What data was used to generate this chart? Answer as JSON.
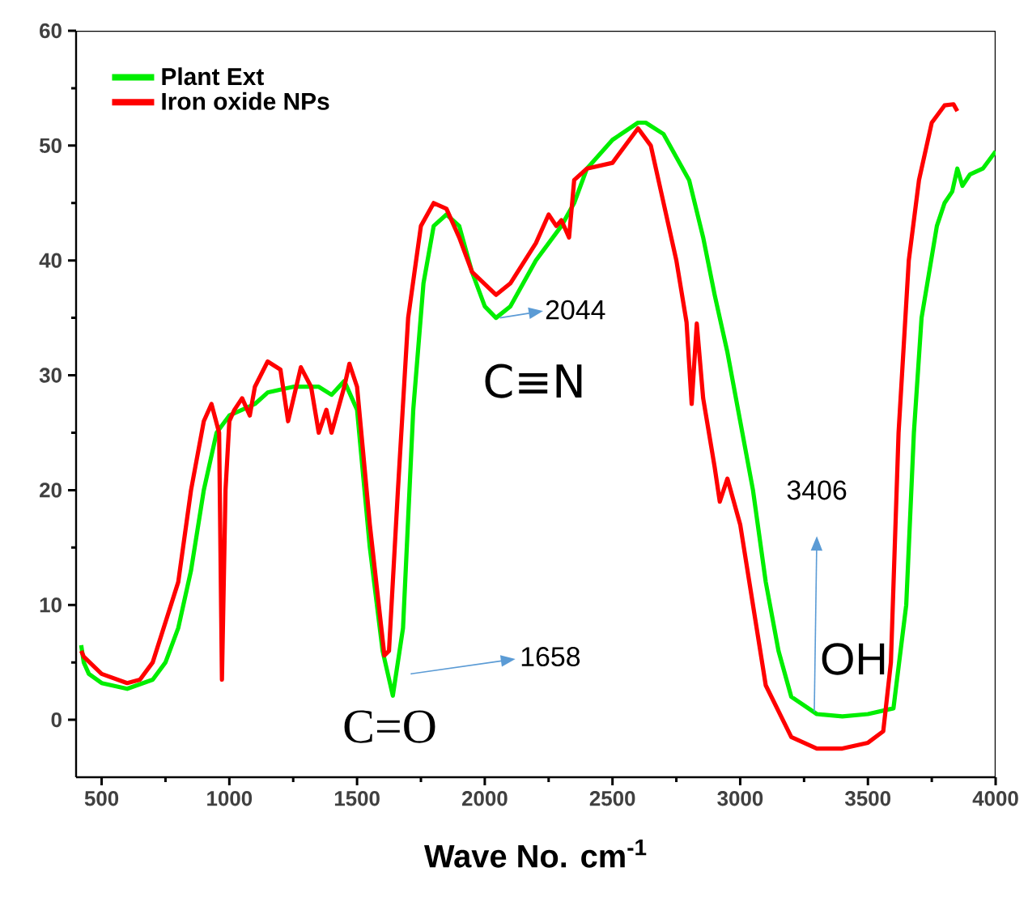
{
  "chart_data": {
    "type": "line",
    "xlabel": "**Wave No. cm$^{-1}$**",
    "xlim": [
      400,
      4000
    ],
    "ylim": [
      -5,
      60
    ],
    "xticks": [
      500,
      1000,
      1500,
      2000,
      2500,
      3000,
      3500,
      4000
    ],
    "yticks": [
      0,
      10,
      20,
      30,
      40,
      50,
      60
    ],
    "grid": false,
    "legend": "top left",
    "series": [
      {
        "name": "Plant Ext",
        "color": "#00ee00",
        "x": [
          420,
          430,
          450,
          500,
          600,
          700,
          750,
          800,
          850,
          900,
          950,
          1000,
          1050,
          1100,
          1150,
          1250,
          1350,
          1400,
          1450,
          1500,
          1550,
          1600,
          1640,
          1680,
          1720,
          1760,
          1800,
          1850,
          1900,
          1950,
          2000,
          2044,
          2100,
          2200,
          2300,
          2350,
          2400,
          2500,
          2600,
          2630,
          2700,
          2800,
          2855,
          2900,
          2950,
          3000,
          3050,
          3100,
          3150,
          3200,
          3300,
          3400,
          3500,
          3600,
          3650,
          3680,
          3710,
          3770,
          3800,
          3830,
          3850,
          3870,
          3900,
          3950,
          4000
        ],
        "values": [
          6.5,
          5,
          4,
          3.2,
          2.7,
          3.5,
          5,
          8,
          13,
          20,
          25,
          26.5,
          27,
          27.5,
          28.5,
          29,
          29,
          28.3,
          29.5,
          27,
          15,
          6,
          2.1,
          8,
          27,
          38,
          43,
          44,
          43,
          39,
          36,
          35,
          36,
          40,
          43,
          45,
          48,
          50.5,
          52,
          52,
          51,
          47,
          42,
          37,
          32,
          26,
          20,
          12,
          6,
          2,
          0.5,
          0.3,
          0.5,
          1,
          10,
          25,
          35,
          43,
          45,
          46,
          48,
          46.5,
          47.5,
          48,
          49.5
        ]
      },
      {
        "name": "Iron oxide NPs",
        "color": "#ff0000",
        "x": [
          420,
          430,
          500,
          600,
          650,
          700,
          800,
          850,
          900,
          930,
          960,
          971,
          985,
          1000,
          1020,
          1050,
          1080,
          1100,
          1150,
          1200,
          1230,
          1280,
          1320,
          1350,
          1380,
          1400,
          1450,
          1470,
          1500,
          1550,
          1607,
          1625,
          1660,
          1700,
          1750,
          1800,
          1850,
          1900,
          1950,
          2044,
          2100,
          2200,
          2250,
          2280,
          2300,
          2330,
          2350,
          2400,
          2500,
          2550,
          2600,
          2650,
          2700,
          2750,
          2790,
          2810,
          2830,
          2855,
          2870,
          2900,
          2920,
          2950,
          3000,
          3050,
          3100,
          3200,
          3300,
          3400,
          3500,
          3560,
          3590,
          3620,
          3660,
          3700,
          3750,
          3800,
          3835,
          3850
        ],
        "values": [
          6,
          5.5,
          4,
          3.2,
          3.5,
          5,
          12,
          20,
          26,
          27.5,
          25,
          3.5,
          20,
          26,
          27,
          28,
          26.5,
          29,
          31.2,
          30.5,
          26,
          30.7,
          29,
          25,
          27,
          25,
          29,
          31,
          29,
          17,
          5.6,
          6,
          20,
          35,
          43,
          45,
          44.5,
          42,
          39,
          37,
          38,
          41.5,
          44,
          43,
          43.5,
          42,
          47,
          48,
          48.5,
          50,
          51.5,
          50,
          45,
          40,
          34.6,
          27.5,
          34.5,
          28,
          26,
          22,
          19,
          21,
          17,
          10,
          3,
          -1.5,
          -2.5,
          -2.5,
          -2,
          -1,
          5,
          25,
          40,
          47,
          52,
          53.5,
          53.6,
          53
        ]
      }
    ],
    "annotations": [
      "2044",
      "C≡N",
      "1658",
      "C=O",
      "3406",
      "OH"
    ]
  }
}
